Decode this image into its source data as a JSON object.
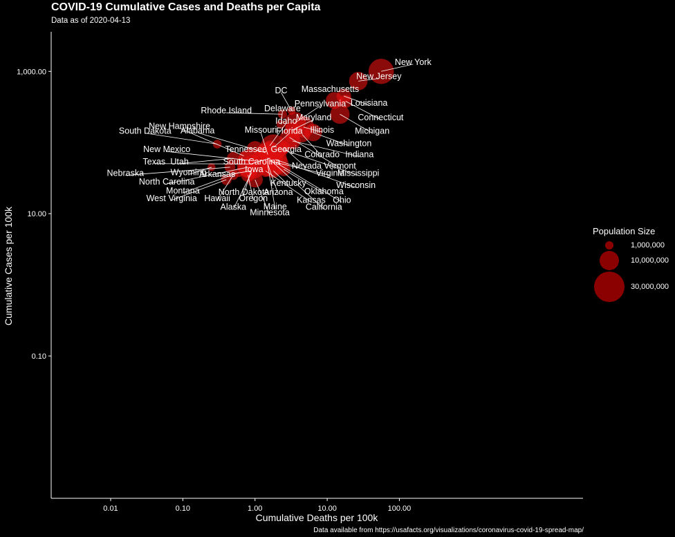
{
  "chart_data": {
    "type": "scatter",
    "title": "COVID-19 Cumulative Cases and Deaths per Capita",
    "subtitle": "Data as of 2020-04-13",
    "caption": "Data available from https://usafacts.org/visualizations/coronavirus-covid-19-spread-map/",
    "xlabel": "Cumulative Deaths per 100k",
    "ylabel": "Cumulative Cases per 100k",
    "x_scale": "log10",
    "y_scale": "log10",
    "xlim": [
      0.0015,
      35000
    ],
    "ylim": [
      0.001,
      3600
    ],
    "x_ticks": [
      0.01,
      0.1,
      1,
      10,
      100
    ],
    "x_tick_labels": [
      "0.01",
      "0.10",
      "1.00",
      "10.00",
      "100.00"
    ],
    "y_ticks": [
      0.1,
      10,
      1000
    ],
    "y_tick_labels": [
      "0.10",
      "10.00",
      "1,000.00"
    ],
    "point_color": "#e01010",
    "legend_color": "#8b0000",
    "label_color": "#ffffff",
    "legend": {
      "title": "Population Size",
      "entries": [
        {
          "label": "1,000,000",
          "value": 1000000
        },
        {
          "label": "10,000,000",
          "value": 10000000
        },
        {
          "label": "30,000,000",
          "value": 30000000
        }
      ]
    },
    "points": [
      {
        "state": "New York",
        "x": 56.0,
        "y": 1000,
        "pop": 19450000
      },
      {
        "state": "New Jersey",
        "x": 27.0,
        "y": 730,
        "pop": 8880000
      },
      {
        "state": "Massachusetts",
        "x": 12.5,
        "y": 390,
        "pop": 6890000
      },
      {
        "state": "Louisiana",
        "x": 17.0,
        "y": 450,
        "pop": 4650000
      },
      {
        "state": "Connecticut",
        "x": 18.0,
        "y": 380,
        "pop": 3570000
      },
      {
        "state": "Michigan",
        "x": 15.0,
        "y": 250,
        "pop": 9990000
      },
      {
        "state": "DC",
        "x": 3.2,
        "y": 280,
        "pop": 705000
      },
      {
        "state": "Pennsylvania",
        "x": 3.6,
        "y": 190,
        "pop": 12800000
      },
      {
        "state": "Maryland",
        "x": 3.3,
        "y": 150,
        "pop": 6050000
      },
      {
        "state": "Illinois",
        "x": 4.7,
        "y": 165,
        "pop": 12670000
      },
      {
        "state": "Washington",
        "x": 6.4,
        "y": 138,
        "pop": 7610000
      },
      {
        "state": "Colorado",
        "x": 4.5,
        "y": 130,
        "pop": 5760000
      },
      {
        "state": "Indiana",
        "x": 3.3,
        "y": 105,
        "pop": 6730000
      },
      {
        "state": "Rhode Island",
        "x": 2.4,
        "y": 250,
        "pop": 1060000
      },
      {
        "state": "Delaware",
        "x": 2.3,
        "y": 180,
        "pop": 973000
      },
      {
        "state": "Georgia",
        "x": 3.0,
        "y": 115,
        "pop": 10620000
      },
      {
        "state": "Vermont",
        "x": 3.0,
        "y": 118,
        "pop": 624000
      },
      {
        "state": "Idaho",
        "x": 1.6,
        "y": 90,
        "pop": 1790000
      },
      {
        "state": "Florida",
        "x": 1.8,
        "y": 85,
        "pop": 21480000
      },
      {
        "state": "Mississippi",
        "x": 2.4,
        "y": 80,
        "pop": 2980000
      },
      {
        "state": "Nevada",
        "x": 2.5,
        "y": 85,
        "pop": 3080000
      },
      {
        "state": "Missouri",
        "x": 1.5,
        "y": 68,
        "pop": 6140000
      },
      {
        "state": "Tennessee",
        "x": 1.0,
        "y": 80,
        "pop": 6830000
      },
      {
        "state": "South Carolina",
        "x": 1.6,
        "y": 60,
        "pop": 5150000
      },
      {
        "state": "Alabama",
        "x": 1.4,
        "y": 72,
        "pop": 4900000
      },
      {
        "state": "New Hampshire",
        "x": 0.7,
        "y": 65,
        "pop": 1360000
      },
      {
        "state": "South Dakota",
        "x": 0.3,
        "y": 95,
        "pop": 885000
      },
      {
        "state": "New Mexico",
        "x": 1.0,
        "y": 55,
        "pop": 2100000
      },
      {
        "state": "Utah",
        "x": 0.5,
        "y": 60,
        "pop": 3210000
      },
      {
        "state": "Texas",
        "x": 0.9,
        "y": 50,
        "pop": 29000000
      },
      {
        "state": "Virginia",
        "x": 1.6,
        "y": 55,
        "pop": 8540000
      },
      {
        "state": "Wisconsin",
        "x": 1.9,
        "y": 58,
        "pop": 5820000
      },
      {
        "state": "Iowa",
        "x": 0.9,
        "y": 55,
        "pop": 3160000
      },
      {
        "state": "Arkansas",
        "x": 0.9,
        "y": 40,
        "pop": 3020000
      },
      {
        "state": "Kentucky",
        "x": 1.8,
        "y": 40,
        "pop": 4470000
      },
      {
        "state": "Oklahoma",
        "x": 2.5,
        "y": 42,
        "pop": 3960000
      },
      {
        "state": "Ohio",
        "x": 2.1,
        "y": 50,
        "pop": 11690000
      },
      {
        "state": "Arizona",
        "x": 1.5,
        "y": 50,
        "pop": 7280000
      },
      {
        "state": "Kansas",
        "x": 1.4,
        "y": 40,
        "pop": 2910000
      },
      {
        "state": "California",
        "x": 1.6,
        "y": 58,
        "pop": 39510000
      },
      {
        "state": "Nebraska",
        "x": 0.45,
        "y": 45,
        "pop": 1930000
      },
      {
        "state": "Wyoming",
        "x": 0.25,
        "y": 45,
        "pop": 579000
      },
      {
        "state": "North Carolina",
        "x": 0.8,
        "y": 45,
        "pop": 10490000
      },
      {
        "state": "Montana",
        "x": 0.6,
        "y": 38,
        "pop": 1070000
      },
      {
        "state": "North Dakota",
        "x": 0.9,
        "y": 43,
        "pop": 762000
      },
      {
        "state": "West Virginia",
        "x": 0.4,
        "y": 30,
        "pop": 1790000
      },
      {
        "state": "Hawaii",
        "x": 0.5,
        "y": 35,
        "pop": 1420000
      },
      {
        "state": "Oregon",
        "x": 0.8,
        "y": 35,
        "pop": 4220000
      },
      {
        "state": "Alaska",
        "x": 0.9,
        "y": 38,
        "pop": 731000
      },
      {
        "state": "Maine",
        "x": 1.5,
        "y": 48,
        "pop": 1340000
      },
      {
        "state": "Minnesota",
        "x": 1.0,
        "y": 30,
        "pop": 5640000
      }
    ],
    "labels": [
      {
        "state": "New York",
        "lx": 155,
        "ly": 1350
      },
      {
        "state": "New Jersey",
        "lx": 52,
        "ly": 850
      },
      {
        "state": "Massachusetts",
        "lx": 11,
        "ly": 560
      },
      {
        "state": "Louisiana",
        "lx": 38,
        "ly": 360
      },
      {
        "state": "Connecticut",
        "lx": 55,
        "ly": 225
      },
      {
        "state": "Michigan",
        "lx": 42,
        "ly": 145
      },
      {
        "state": "DC",
        "lx": 2.3,
        "ly": 540
      },
      {
        "state": "Pennsylvania",
        "lx": 8,
        "ly": 350
      },
      {
        "state": "Maryland",
        "lx": 6.5,
        "ly": 225
      },
      {
        "state": "Illinois",
        "lx": 8.5,
        "ly": 150
      },
      {
        "state": "Washington",
        "lx": 20,
        "ly": 97
      },
      {
        "state": "Colorado",
        "lx": 8.5,
        "ly": 68
      },
      {
        "state": "Indiana",
        "lx": 28,
        "ly": 68
      },
      {
        "state": "Rhode Island",
        "lx": 0.4,
        "ly": 280
      },
      {
        "state": "Delaware",
        "lx": 2.4,
        "ly": 300
      },
      {
        "state": "Georgia",
        "lx": 2.7,
        "ly": 80
      },
      {
        "state": "Vermont",
        "lx": 15,
        "ly": 47
      },
      {
        "state": "Idaho",
        "lx": 2.7,
        "ly": 200
      },
      {
        "state": "Florida",
        "lx": 3.0,
        "ly": 145
      },
      {
        "state": "Mississippi",
        "lx": 27,
        "ly": 37
      },
      {
        "state": "Nevada",
        "lx": 5.2,
        "ly": 47
      },
      {
        "state": "Missouri",
        "lx": 1.2,
        "ly": 150
      },
      {
        "state": "Tennessee",
        "lx": 0.75,
        "ly": 80
      },
      {
        "state": "South Carolina",
        "lx": 0.9,
        "ly": 54
      },
      {
        "state": "Alabama",
        "lx": 0.16,
        "ly": 147
      },
      {
        "state": "New Hampshire",
        "lx": 0.09,
        "ly": 170
      },
      {
        "state": "South Dakota",
        "lx": 0.03,
        "ly": 145
      },
      {
        "state": "New Mexico",
        "lx": 0.06,
        "ly": 80
      },
      {
        "state": "Utah",
        "lx": 0.09,
        "ly": 54
      },
      {
        "state": "Texas",
        "lx": 0.04,
        "ly": 54
      },
      {
        "state": "Virginia",
        "lx": 11,
        "ly": 37
      },
      {
        "state": "Wisconsin",
        "lx": 25,
        "ly": 25
      },
      {
        "state": "Iowa",
        "lx": 0.97,
        "ly": 42
      },
      {
        "state": "Arkansas",
        "lx": 0.3,
        "ly": 36
      },
      {
        "state": "Kentucky",
        "lx": 2.9,
        "ly": 27
      },
      {
        "state": "Oklahoma",
        "lx": 9,
        "ly": 20.5
      },
      {
        "state": "Ohio",
        "lx": 16,
        "ly": 15.5
      },
      {
        "state": "Arizona",
        "lx": 2.1,
        "ly": 20
      },
      {
        "state": "Kansas",
        "lx": 6,
        "ly": 15.5
      },
      {
        "state": "California",
        "lx": 9,
        "ly": 12.4
      },
      {
        "state": "Nebraska",
        "lx": 0.016,
        "ly": 37
      },
      {
        "state": "Wyoming",
        "lx": 0.12,
        "ly": 38
      },
      {
        "state": "North Carolina",
        "lx": 0.06,
        "ly": 28
      },
      {
        "state": "Montana",
        "lx": 0.1,
        "ly": 21
      },
      {
        "state": "North Dakota",
        "lx": 0.7,
        "ly": 20
      },
      {
        "state": "West Virginia",
        "lx": 0.07,
        "ly": 16.5
      },
      {
        "state": "Hawaii",
        "lx": 0.3,
        "ly": 16.5
      },
      {
        "state": "Oregon",
        "lx": 0.95,
        "ly": 16.5
      },
      {
        "state": "Alaska",
        "lx": 0.5,
        "ly": 12.4
      },
      {
        "state": "Maine",
        "lx": 1.9,
        "ly": 12.6
      },
      {
        "state": "Minnesota",
        "lx": 1.6,
        "ly": 10.4
      }
    ]
  }
}
